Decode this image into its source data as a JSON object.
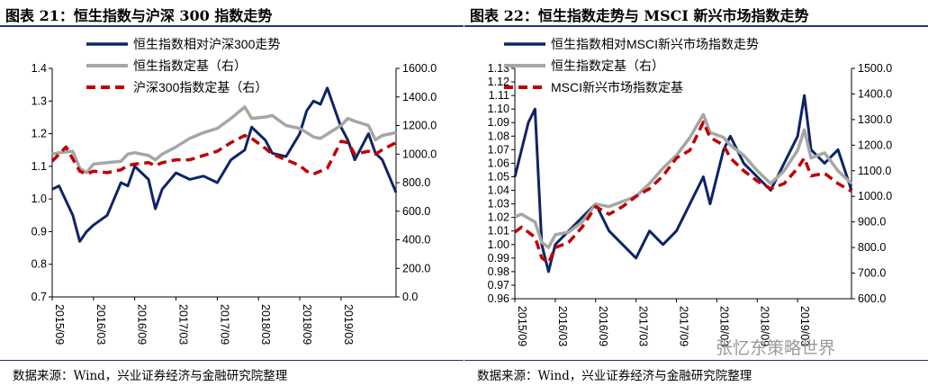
{
  "colors": {
    "navy": "#0d2466",
    "gray": "#a6a6a6",
    "red": "#c00000",
    "rule": "#1f3864"
  },
  "chart_data": [
    {
      "type": "line",
      "title": "图表 21：恒生指数与沪深 300 指数走势",
      "source": "数据来源：Wind，兴业证券经济与金融研究院整理",
      "x_ticks": [
        "2015/09",
        "2016/03",
        "2016/09",
        "2017/03",
        "2017/09",
        "2018/03",
        "2018/09",
        "2019/03"
      ],
      "x_range": [
        "2015-09",
        "2019-11"
      ],
      "y_left": {
        "ticks": [
          "0.7",
          "0.8",
          "0.9",
          "1.0",
          "1.1",
          "1.2",
          "1.3",
          "1.4"
        ],
        "range": [
          0.7,
          1.4
        ]
      },
      "y_right": {
        "ticks": [
          "0.0",
          "200.0",
          "400.0",
          "600.0",
          "800.0",
          "1000.0",
          "1200.0",
          "1400.0",
          "1600.0"
        ],
        "range": [
          0,
          1600
        ]
      },
      "legend_position": "top-center",
      "series": [
        {
          "name": "恒生指数相对沪深300走势",
          "axis": "left",
          "color": "navy",
          "style": "solid",
          "x": [
            "2015-09",
            "2015-10",
            "2015-12",
            "2016-01",
            "2016-02",
            "2016-03",
            "2016-05",
            "2016-07",
            "2016-08",
            "2016-09",
            "2016-11",
            "2016-12",
            "2017-01",
            "2017-03",
            "2017-05",
            "2017-07",
            "2017-09",
            "2017-11",
            "2018-01",
            "2018-02",
            "2018-04",
            "2018-05",
            "2018-07",
            "2018-09",
            "2018-10",
            "2018-11",
            "2018-12",
            "2019-01",
            "2019-03",
            "2019-04",
            "2019-05",
            "2019-07",
            "2019-08",
            "2019-09",
            "2019-11"
          ],
          "values": [
            1.03,
            1.04,
            0.95,
            0.87,
            0.9,
            0.92,
            0.95,
            1.05,
            1.04,
            1.1,
            1.06,
            0.97,
            1.03,
            1.08,
            1.06,
            1.07,
            1.05,
            1.12,
            1.15,
            1.22,
            1.18,
            1.14,
            1.13,
            1.2,
            1.27,
            1.3,
            1.29,
            1.34,
            1.22,
            1.18,
            1.12,
            1.2,
            1.14,
            1.12,
            1.02
          ]
        },
        {
          "name": "恒生指数定基（右）",
          "axis": "right",
          "color": "gray",
          "style": "solid",
          "x": [
            "2015-09",
            "2015-10",
            "2015-12",
            "2016-01",
            "2016-02",
            "2016-03",
            "2016-05",
            "2016-07",
            "2016-08",
            "2016-09",
            "2016-11",
            "2016-12",
            "2017-01",
            "2017-03",
            "2017-05",
            "2017-07",
            "2017-09",
            "2017-11",
            "2018-01",
            "2018-02",
            "2018-04",
            "2018-05",
            "2018-07",
            "2018-09",
            "2018-10",
            "2018-11",
            "2018-12",
            "2019-01",
            "2019-03",
            "2019-04",
            "2019-05",
            "2019-07",
            "2019-08",
            "2019-09",
            "2019-11"
          ],
          "values": [
            1000,
            1010,
            1020,
            900,
            870,
            930,
            940,
            950,
            1000,
            1010,
            990,
            960,
            1000,
            1050,
            1110,
            1150,
            1180,
            1250,
            1330,
            1250,
            1260,
            1270,
            1200,
            1180,
            1150,
            1120,
            1110,
            1140,
            1200,
            1250,
            1230,
            1200,
            1100,
            1130,
            1150
          ]
        },
        {
          "name": "沪深300指数定基（右）",
          "axis": "right",
          "color": "red",
          "style": "dashed",
          "x": [
            "2015-09",
            "2015-10",
            "2015-11",
            "2016-01",
            "2016-02",
            "2016-03",
            "2016-05",
            "2016-07",
            "2016-08",
            "2016-09",
            "2016-11",
            "2016-12",
            "2017-01",
            "2017-03",
            "2017-05",
            "2017-07",
            "2017-09",
            "2017-11",
            "2018-01",
            "2018-02",
            "2018-04",
            "2018-05",
            "2018-07",
            "2018-09",
            "2018-10",
            "2018-11",
            "2018-12",
            "2019-01",
            "2019-03",
            "2019-04",
            "2019-05",
            "2019-07",
            "2019-08",
            "2019-09",
            "2019-11"
          ],
          "values": [
            950,
            1000,
            1050,
            880,
            860,
            880,
            870,
            890,
            920,
            930,
            940,
            920,
            940,
            960,
            960,
            990,
            1020,
            1080,
            1130,
            1110,
            1040,
            1000,
            960,
            920,
            880,
            860,
            880,
            900,
            1090,
            1080,
            1000,
            1020,
            1000,
            1030,
            1080
          ]
        }
      ]
    },
    {
      "type": "line",
      "title": "图表 22：恒生指数走势与 MSCI 新兴市场指数走势",
      "source": "数据来源：Wind，兴业证券经济与金融研究院整理",
      "x_ticks": [
        "2015/09",
        "2016/03",
        "2016/09",
        "2017/03",
        "2017/09",
        "2018/03",
        "2018/09",
        "2019/03"
      ],
      "x_range": [
        "2015-09",
        "2019-11"
      ],
      "y_left": {
        "ticks": [
          "0.96",
          "0.97",
          "0.98",
          "0.99",
          "1.00",
          "1.01",
          "1.02",
          "1.03",
          "1.04",
          "1.05",
          "1.06",
          "1.07",
          "1.08",
          "1.09",
          "1.10",
          "1.11",
          "1.12",
          "1.13"
        ],
        "range": [
          0.96,
          1.13
        ]
      },
      "y_right": {
        "ticks": [
          "600.0",
          "700.0",
          "800.0",
          "900.0",
          "1000.0",
          "1100.0",
          "1200.0",
          "1300.0",
          "1400.0",
          "1500.0"
        ],
        "range": [
          600,
          1500
        ]
      },
      "legend_position": "top-center",
      "series": [
        {
          "name": "恒生指数相对MSCI新兴市场指数走势",
          "axis": "left",
          "color": "navy",
          "style": "solid",
          "x": [
            "2015-09",
            "2015-11",
            "2015-12",
            "2016-01",
            "2016-02",
            "2016-03",
            "2016-05",
            "2016-07",
            "2016-09",
            "2016-11",
            "2017-01",
            "2017-03",
            "2017-05",
            "2017-07",
            "2017-09",
            "2017-11",
            "2018-01",
            "2018-02",
            "2018-04",
            "2018-05",
            "2018-07",
            "2018-09",
            "2018-11",
            "2019-01",
            "2019-03",
            "2019-04",
            "2019-05",
            "2019-07",
            "2019-09",
            "2019-11"
          ],
          "values": [
            1.05,
            1.09,
            1.1,
            1.0,
            0.98,
            1.0,
            1.01,
            1.02,
            1.03,
            1.01,
            1.0,
            0.99,
            1.01,
            1.0,
            1.01,
            1.03,
            1.05,
            1.03,
            1.07,
            1.08,
            1.06,
            1.05,
            1.04,
            1.06,
            1.08,
            1.11,
            1.07,
            1.06,
            1.07,
            1.04
          ]
        },
        {
          "name": "恒生指数定基（右）",
          "axis": "right",
          "color": "gray",
          "style": "solid",
          "x": [
            "2015-09",
            "2015-10",
            "2015-12",
            "2016-01",
            "2016-02",
            "2016-03",
            "2016-05",
            "2016-07",
            "2016-09",
            "2016-11",
            "2017-01",
            "2017-03",
            "2017-05",
            "2017-07",
            "2017-09",
            "2017-11",
            "2018-01",
            "2018-02",
            "2018-04",
            "2018-05",
            "2018-07",
            "2018-09",
            "2018-11",
            "2019-01",
            "2019-03",
            "2019-04",
            "2019-05",
            "2019-07",
            "2019-09",
            "2019-11"
          ],
          "values": [
            920,
            930,
            900,
            820,
            800,
            850,
            860,
            900,
            970,
            960,
            980,
            1000,
            1050,
            1110,
            1160,
            1230,
            1320,
            1250,
            1230,
            1200,
            1160,
            1100,
            1050,
            1100,
            1180,
            1260,
            1150,
            1170,
            1100,
            1050
          ]
        },
        {
          "name": "MSCI新兴市场指数定基",
          "axis": "right",
          "color": "red",
          "style": "dashed",
          "x": [
            "2015-09",
            "2015-10",
            "2015-12",
            "2016-01",
            "2016-02",
            "2016-03",
            "2016-05",
            "2016-07",
            "2016-09",
            "2016-11",
            "2017-01",
            "2017-03",
            "2017-05",
            "2017-07",
            "2017-09",
            "2017-11",
            "2018-01",
            "2018-02",
            "2018-04",
            "2018-05",
            "2018-07",
            "2018-09",
            "2018-11",
            "2019-01",
            "2019-03",
            "2019-04",
            "2019-05",
            "2019-07",
            "2019-09",
            "2019-11"
          ],
          "values": [
            860,
            880,
            840,
            760,
            740,
            800,
            820,
            880,
            960,
            930,
            960,
            1000,
            1030,
            1080,
            1150,
            1180,
            1290,
            1230,
            1200,
            1150,
            1100,
            1060,
            1030,
            1050,
            1110,
            1150,
            1080,
            1090,
            1050,
            1020
          ]
        }
      ]
    }
  ],
  "watermark": "张忆东策略世界"
}
